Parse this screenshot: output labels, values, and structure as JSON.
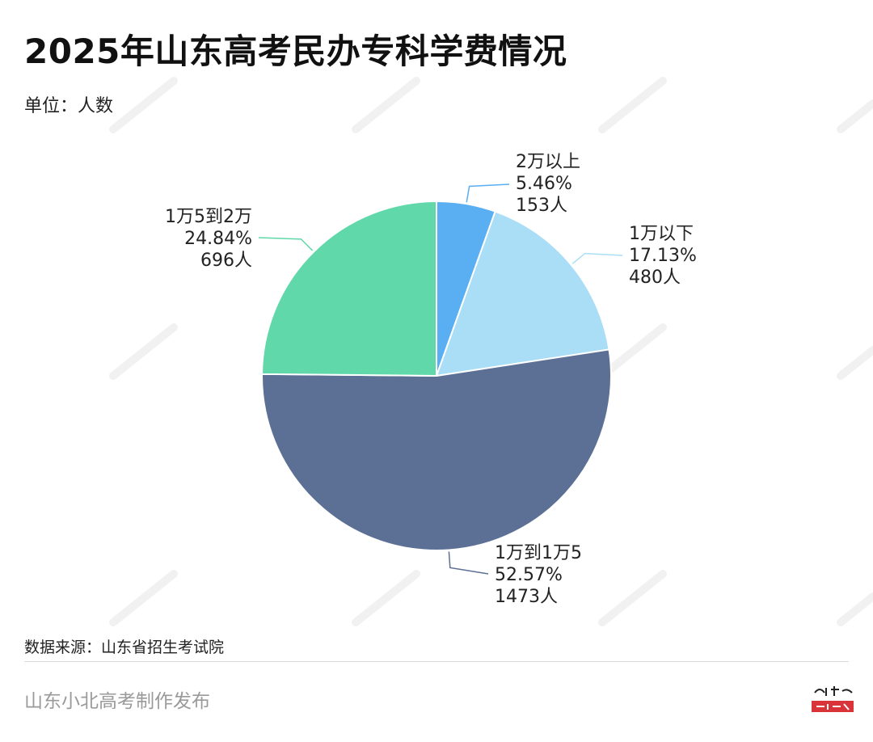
{
  "header": {
    "title": "2025年山东高考民办专科学费情况",
    "unit": "单位：人数"
  },
  "chart_data": {
    "type": "pie",
    "title": "2025年山东高考民办专科学费情况",
    "unit": "人数",
    "slices": [
      {
        "label": "2万以上",
        "percent": "5.46%",
        "count": "153人",
        "value": 153,
        "color": "#5aaef2"
      },
      {
        "label": "1万以下",
        "percent": "17.13%",
        "count": "480人",
        "value": 480,
        "color": "#aadef6"
      },
      {
        "label": "1万到1万5",
        "percent": "52.57%",
        "count": "1473人",
        "value": 1473,
        "color": "#5c7096"
      },
      {
        "label": "1万5到2万",
        "percent": "24.84%",
        "count": "696人",
        "value": 696,
        "color": "#60d8aa"
      }
    ]
  },
  "footer": {
    "source": "数据来源：山东省招生考试院",
    "credit": "山东小北高考制作发布"
  }
}
